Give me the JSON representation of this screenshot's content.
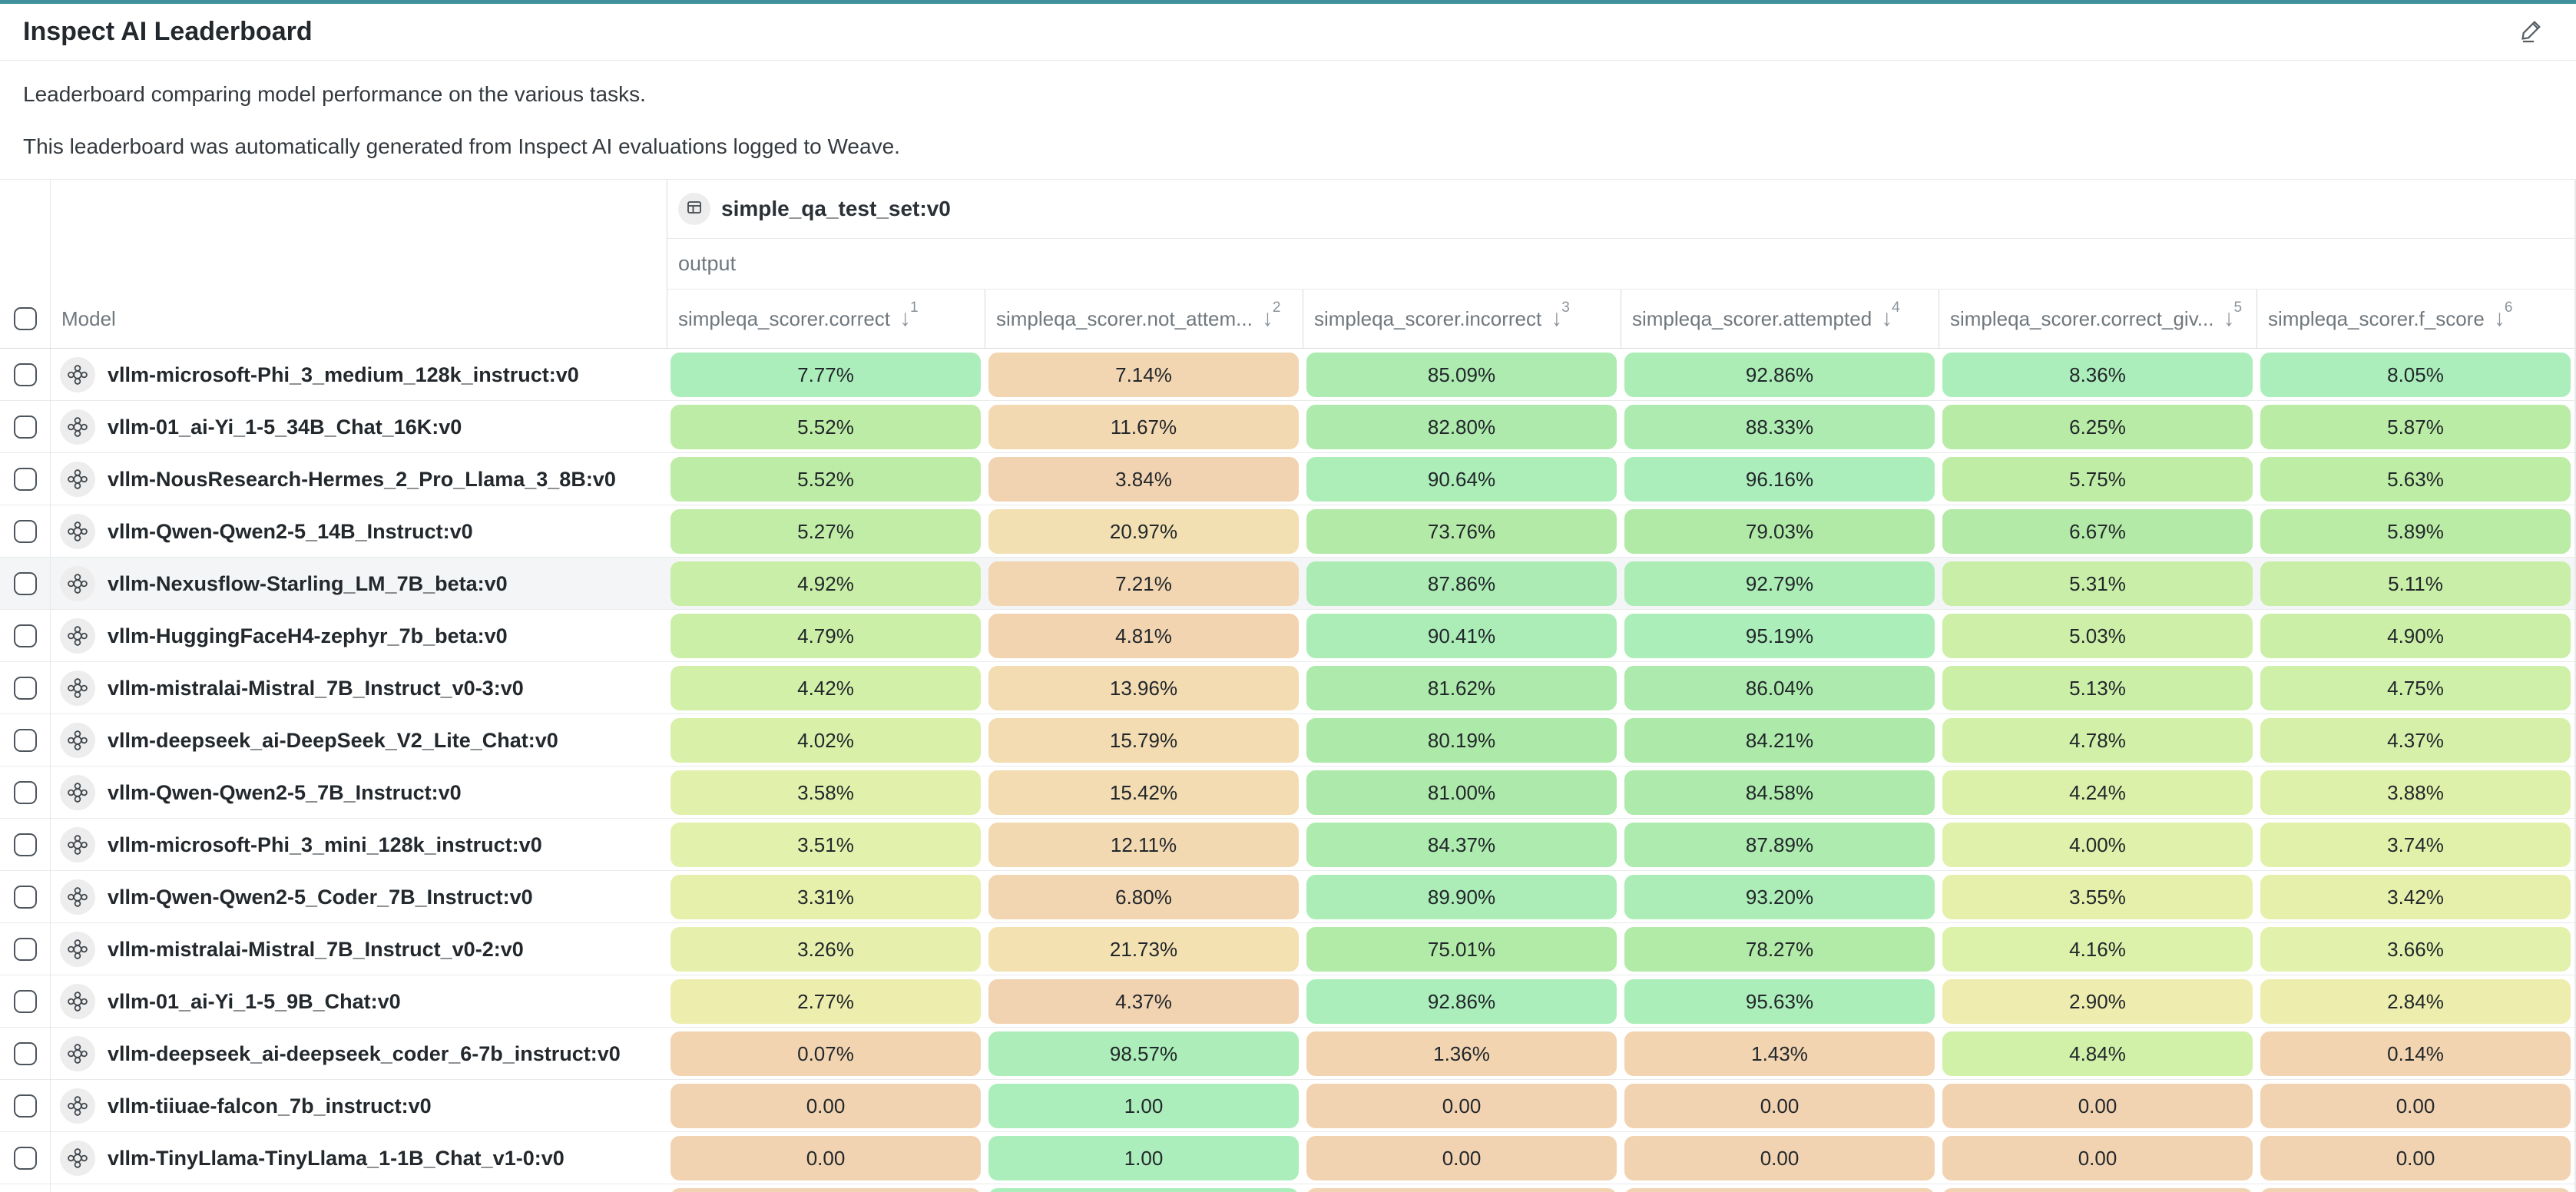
{
  "page": {
    "title": "Inspect AI Leaderboard",
    "description1": "Leaderboard comparing model performance on the various tasks.",
    "description2": "This leaderboard was automatically generated from Inspect AI evaluations logged to Weave."
  },
  "icons": {
    "edit": "pencil-icon",
    "dataset": "table-grid-icon",
    "model": "model-nodes-icon",
    "sort": "arrow-down-icon"
  },
  "colors": {
    "accent_teal": "#41909b",
    "row_highlight": "#f4f5f6",
    "scale": [
      {
        "p": 0.0,
        "c": [
          242,
          211,
          177
        ]
      },
      {
        "p": 0.16,
        "c": [
          243,
          223,
          178
        ]
      },
      {
        "p": 0.3,
        "c": [
          243,
          234,
          175
        ]
      },
      {
        "p": 0.44,
        "c": [
          228,
          241,
          171
        ]
      },
      {
        "p": 0.58,
        "c": [
          209,
          240,
          168
        ]
      },
      {
        "p": 0.72,
        "c": [
          187,
          236,
          166
        ]
      },
      {
        "p": 0.86,
        "c": [
          173,
          233,
          168
        ]
      },
      {
        "p": 1.0,
        "c": [
          172,
          238,
          187
        ]
      }
    ]
  },
  "table": {
    "group_header": "simple_qa_test_set:v0",
    "subgroup_header": "output",
    "model_column_label": "Model",
    "columns": [
      {
        "label": "simpleqa_scorer.correct",
        "sort_arrow": "↓",
        "sort_order": "1"
      },
      {
        "label": "simpleqa_scorer.not_attem...",
        "sort_arrow": "↓",
        "sort_order": "2"
      },
      {
        "label": "simpleqa_scorer.incorrect",
        "sort_arrow": "↓",
        "sort_order": "3"
      },
      {
        "label": "simpleqa_scorer.attempted",
        "sort_arrow": "↓",
        "sort_order": "4"
      },
      {
        "label": "simpleqa_scorer.correct_giv...",
        "sort_arrow": "↓",
        "sort_order": "5"
      },
      {
        "label": "simpleqa_scorer.f_score",
        "sort_arrow": "↓",
        "sort_order": "6"
      }
    ],
    "rows": [
      {
        "model": "vllm-microsoft-Phi_3_medium_128k_instruct:v0",
        "highlighted": false,
        "cells": [
          {
            "text": "7.77%",
            "v": 0.0777
          },
          {
            "text": "7.14%",
            "v": 0.0714
          },
          {
            "text": "85.09%",
            "v": 0.8509
          },
          {
            "text": "92.86%",
            "v": 0.9286
          },
          {
            "text": "8.36%",
            "v": 0.0836
          },
          {
            "text": "8.05%",
            "v": 0.0805
          }
        ]
      },
      {
        "model": "vllm-01_ai-Yi_1-5_34B_Chat_16K:v0",
        "highlighted": false,
        "cells": [
          {
            "text": "5.52%",
            "v": 0.0552
          },
          {
            "text": "11.67%",
            "v": 0.1167
          },
          {
            "text": "82.80%",
            "v": 0.828
          },
          {
            "text": "88.33%",
            "v": 0.8833
          },
          {
            "text": "6.25%",
            "v": 0.0625
          },
          {
            "text": "5.87%",
            "v": 0.0587
          }
        ]
      },
      {
        "model": "vllm-NousResearch-Hermes_2_Pro_Llama_3_8B:v0",
        "highlighted": false,
        "cells": [
          {
            "text": "5.52%",
            "v": 0.0552
          },
          {
            "text": "3.84%",
            "v": 0.0384
          },
          {
            "text": "90.64%",
            "v": 0.9064
          },
          {
            "text": "96.16%",
            "v": 0.9616
          },
          {
            "text": "5.75%",
            "v": 0.0575
          },
          {
            "text": "5.63%",
            "v": 0.0563
          }
        ]
      },
      {
        "model": "vllm-Qwen-Qwen2-5_14B_Instruct:v0",
        "highlighted": false,
        "cells": [
          {
            "text": "5.27%",
            "v": 0.0527
          },
          {
            "text": "20.97%",
            "v": 0.2097
          },
          {
            "text": "73.76%",
            "v": 0.7376
          },
          {
            "text": "79.03%",
            "v": 0.7903
          },
          {
            "text": "6.67%",
            "v": 0.0667
          },
          {
            "text": "5.89%",
            "v": 0.0589
          }
        ]
      },
      {
        "model": "vllm-Nexusflow-Starling_LM_7B_beta:v0",
        "highlighted": true,
        "cells": [
          {
            "text": "4.92%",
            "v": 0.0492
          },
          {
            "text": "7.21%",
            "v": 0.0721
          },
          {
            "text": "87.86%",
            "v": 0.8786
          },
          {
            "text": "92.79%",
            "v": 0.9279
          },
          {
            "text": "5.31%",
            "v": 0.0531
          },
          {
            "text": "5.11%",
            "v": 0.0511
          }
        ]
      },
      {
        "model": "vllm-HuggingFaceH4-zephyr_7b_beta:v0",
        "highlighted": false,
        "cells": [
          {
            "text": "4.79%",
            "v": 0.0479
          },
          {
            "text": "4.81%",
            "v": 0.0481
          },
          {
            "text": "90.41%",
            "v": 0.9041
          },
          {
            "text": "95.19%",
            "v": 0.9519
          },
          {
            "text": "5.03%",
            "v": 0.0503
          },
          {
            "text": "4.90%",
            "v": 0.049
          }
        ]
      },
      {
        "model": "vllm-mistralai-Mistral_7B_Instruct_v0-3:v0",
        "highlighted": false,
        "cells": [
          {
            "text": "4.42%",
            "v": 0.0442
          },
          {
            "text": "13.96%",
            "v": 0.1396
          },
          {
            "text": "81.62%",
            "v": 0.8162
          },
          {
            "text": "86.04%",
            "v": 0.8604
          },
          {
            "text": "5.13%",
            "v": 0.0513
          },
          {
            "text": "4.75%",
            "v": 0.0475
          }
        ]
      },
      {
        "model": "vllm-deepseek_ai-DeepSeek_V2_Lite_Chat:v0",
        "highlighted": false,
        "cells": [
          {
            "text": "4.02%",
            "v": 0.0402
          },
          {
            "text": "15.79%",
            "v": 0.1579
          },
          {
            "text": "80.19%",
            "v": 0.8019
          },
          {
            "text": "84.21%",
            "v": 0.8421
          },
          {
            "text": "4.78%",
            "v": 0.0478
          },
          {
            "text": "4.37%",
            "v": 0.0437
          }
        ]
      },
      {
        "model": "vllm-Qwen-Qwen2-5_7B_Instruct:v0",
        "highlighted": false,
        "cells": [
          {
            "text": "3.58%",
            "v": 0.0358
          },
          {
            "text": "15.42%",
            "v": 0.1542
          },
          {
            "text": "81.00%",
            "v": 0.81
          },
          {
            "text": "84.58%",
            "v": 0.8458
          },
          {
            "text": "4.24%",
            "v": 0.0424
          },
          {
            "text": "3.88%",
            "v": 0.0388
          }
        ]
      },
      {
        "model": "vllm-microsoft-Phi_3_mini_128k_instruct:v0",
        "highlighted": false,
        "cells": [
          {
            "text": "3.51%",
            "v": 0.0351
          },
          {
            "text": "12.11%",
            "v": 0.1211
          },
          {
            "text": "84.37%",
            "v": 0.8437
          },
          {
            "text": "87.89%",
            "v": 0.8789
          },
          {
            "text": "4.00%",
            "v": 0.04
          },
          {
            "text": "3.74%",
            "v": 0.0374
          }
        ]
      },
      {
        "model": "vllm-Qwen-Qwen2-5_Coder_7B_Instruct:v0",
        "highlighted": false,
        "cells": [
          {
            "text": "3.31%",
            "v": 0.0331
          },
          {
            "text": "6.80%",
            "v": 0.068
          },
          {
            "text": "89.90%",
            "v": 0.899
          },
          {
            "text": "93.20%",
            "v": 0.932
          },
          {
            "text": "3.55%",
            "v": 0.0355
          },
          {
            "text": "3.42%",
            "v": 0.0342
          }
        ]
      },
      {
        "model": "vllm-mistralai-Mistral_7B_Instruct_v0-2:v0",
        "highlighted": false,
        "cells": [
          {
            "text": "3.26%",
            "v": 0.0326
          },
          {
            "text": "21.73%",
            "v": 0.2173
          },
          {
            "text": "75.01%",
            "v": 0.7501
          },
          {
            "text": "78.27%",
            "v": 0.7827
          },
          {
            "text": "4.16%",
            "v": 0.0416
          },
          {
            "text": "3.66%",
            "v": 0.0366
          }
        ]
      },
      {
        "model": "vllm-01_ai-Yi_1-5_9B_Chat:v0",
        "highlighted": false,
        "cells": [
          {
            "text": "2.77%",
            "v": 0.0277
          },
          {
            "text": "4.37%",
            "v": 0.0437
          },
          {
            "text": "92.86%",
            "v": 0.9286
          },
          {
            "text": "95.63%",
            "v": 0.9563
          },
          {
            "text": "2.90%",
            "v": 0.029
          },
          {
            "text": "2.84%",
            "v": 0.0284
          }
        ]
      },
      {
        "model": "vllm-deepseek_ai-deepseek_coder_6-7b_instruct:v0",
        "highlighted": false,
        "cells": [
          {
            "text": "0.07%",
            "v": 0.0007
          },
          {
            "text": "98.57%",
            "v": 0.9857
          },
          {
            "text": "1.36%",
            "v": 0.0136
          },
          {
            "text": "1.43%",
            "v": 0.0143
          },
          {
            "text": "4.84%",
            "v": 0.0484
          },
          {
            "text": "0.14%",
            "v": 0.0014
          }
        ]
      },
      {
        "model": "vllm-tiiuae-falcon_7b_instruct:v0",
        "highlighted": false,
        "cells": [
          {
            "text": "0.00",
            "v": 0.0
          },
          {
            "text": "1.00",
            "v": 1.0
          },
          {
            "text": "0.00",
            "v": 0.0
          },
          {
            "text": "0.00",
            "v": 0.0
          },
          {
            "text": "0.00",
            "v": 0.0
          },
          {
            "text": "0.00",
            "v": 0.0
          }
        ]
      },
      {
        "model": "vllm-TinyLlama-TinyLlama_1-1B_Chat_v1-0:v0",
        "highlighted": false,
        "cells": [
          {
            "text": "0.00",
            "v": 0.0
          },
          {
            "text": "1.00",
            "v": 1.0
          },
          {
            "text": "0.00",
            "v": 0.0
          },
          {
            "text": "0.00",
            "v": 0.0
          },
          {
            "text": "0.00",
            "v": 0.0
          },
          {
            "text": "0.00",
            "v": 0.0
          }
        ]
      }
    ],
    "partial_row": {
      "model": "",
      "highlighted": false,
      "cells": [
        {
          "text": "",
          "v": 0.0
        },
        {
          "text": "",
          "v": 1.0
        },
        {
          "text": "",
          "v": 0.0
        },
        {
          "text": "",
          "v": 0.0
        },
        {
          "text": "",
          "v": 0.0
        },
        {
          "text": "",
          "v": 0.0
        }
      ]
    }
  }
}
